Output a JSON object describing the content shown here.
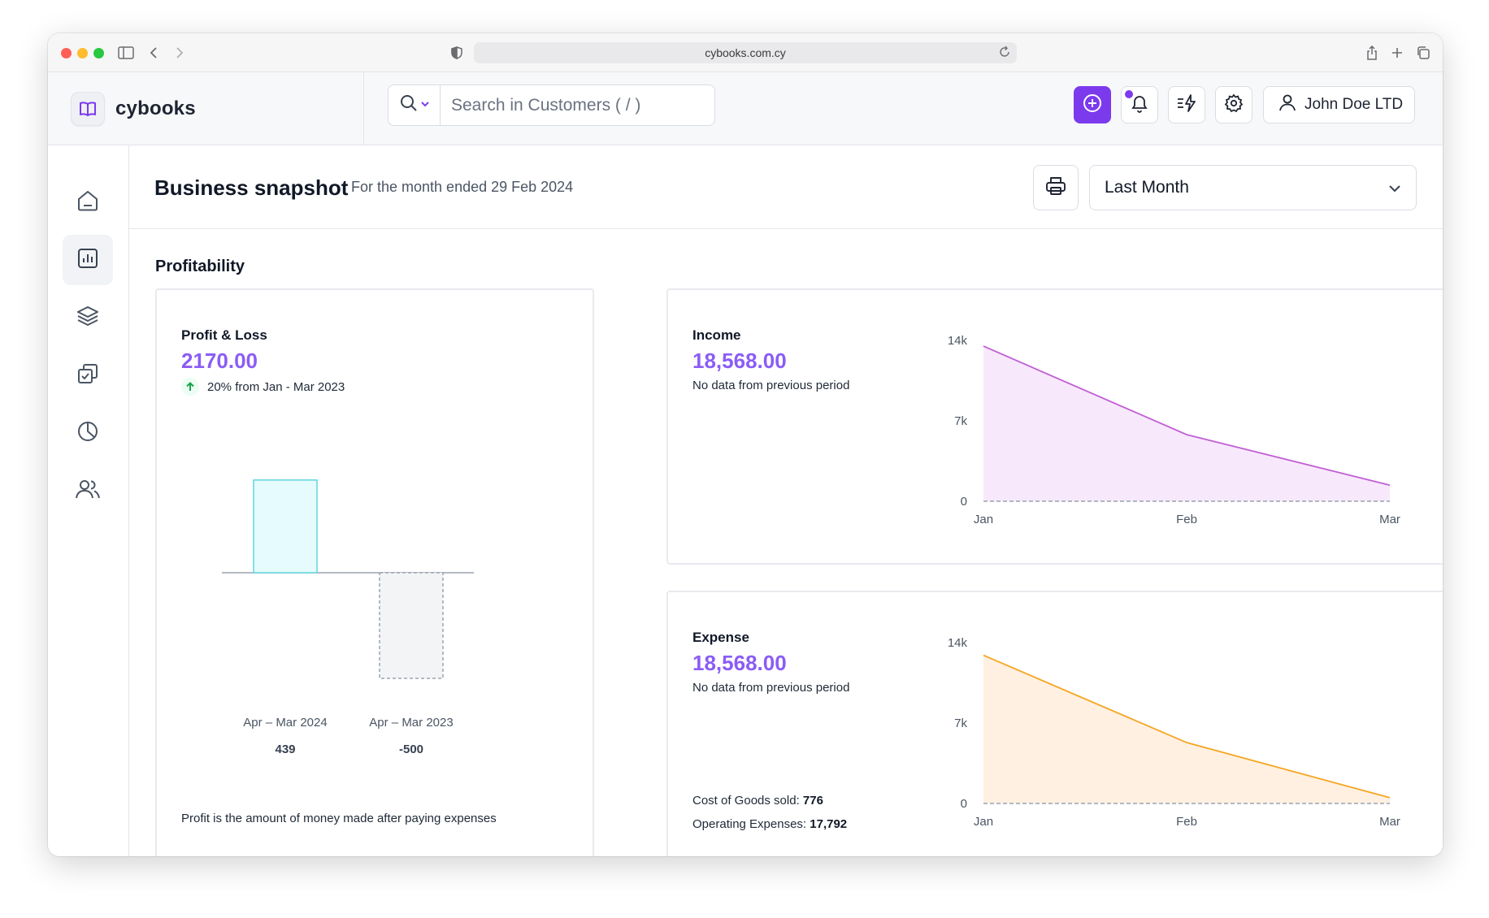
{
  "browser": {
    "url": "cybooks.com.cy"
  },
  "brand": {
    "name": "cybooks"
  },
  "search": {
    "placeholder": "Search in Customers ( / )"
  },
  "user": {
    "name": "John Doe LTD"
  },
  "page": {
    "title": "Business snapshot",
    "subtitle": "For the month ended 29 Feb 2024",
    "period": "Last Month"
  },
  "section": {
    "title": "Profitability"
  },
  "profit_loss": {
    "label": "Profit & Loss",
    "value": "2170.00",
    "trend": "20% from Jan - Mar 2023",
    "footer": "Profit is the amount of money made after paying expenses",
    "bars": [
      {
        "label": "Apr – Mar 2024",
        "value": 439,
        "display": "439"
      },
      {
        "label": "Apr – Mar 2023",
        "value": -500,
        "display": "-500"
      }
    ]
  },
  "income": {
    "label": "Income",
    "value": "18,568.00",
    "note": "No data from previous period"
  },
  "expense": {
    "label": "Expense",
    "value": "18,568.00",
    "note": "No data from previous period",
    "cogs_label": "Cost of Goods sold:",
    "cogs_value": "776",
    "opex_label": "Operating Expenses:",
    "opex_value": "17,792"
  },
  "chart_data": [
    {
      "type": "area",
      "categories": [
        "Jan",
        "Feb",
        "Mar"
      ],
      "series": [
        {
          "values": [
            13500,
            5800,
            1400
          ]
        }
      ],
      "yticks": [
        "14k",
        "7k",
        "0"
      ],
      "ylim": [
        0,
        14000
      ],
      "color": "#c15fd6",
      "fill": "#f7e9fb"
    },
    {
      "type": "area",
      "categories": [
        "Jan",
        "Feb",
        "Mar"
      ],
      "series": [
        {
          "values": [
            12900,
            5300,
            500
          ]
        }
      ],
      "yticks": [
        "14k",
        "7k",
        "0"
      ],
      "ylim": [
        0,
        14000
      ],
      "color": "#f5a623",
      "fill": "#fff0e1"
    }
  ],
  "colors": {
    "accent": "#7c3aed",
    "value": "#8b5cf6",
    "positive_bar": "#e6fbfd",
    "positive_bar_border": "#5ed6e0"
  }
}
